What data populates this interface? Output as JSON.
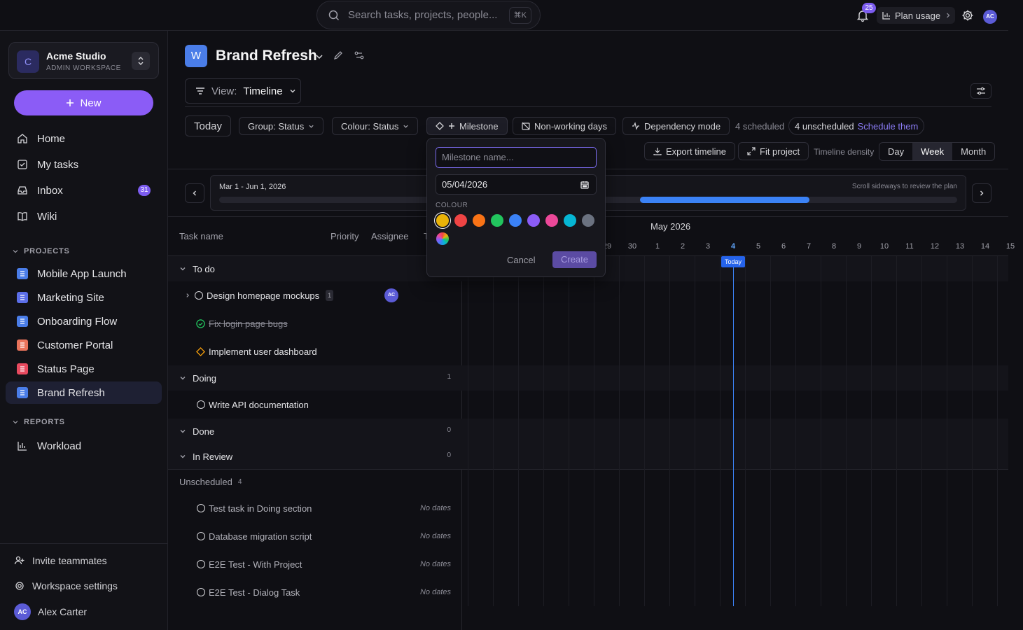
{
  "topbar": {
    "search_placeholder": "Search tasks, projects, people...",
    "search_shortcut": "⌘K",
    "notifications_count": "25",
    "plan_usage_label": "Plan usage",
    "user_initials": "AC"
  },
  "sidebar": {
    "workspace_initial": "C",
    "workspace_name": "Acme Studio",
    "workspace_role": "ADMIN WORKSPACE",
    "new_label": "New",
    "nav": [
      {
        "label": "Home"
      },
      {
        "label": "My tasks"
      },
      {
        "label": "Inbox",
        "badge": "31"
      },
      {
        "label": "Wiki"
      }
    ],
    "projects_heading": "PROJECTS",
    "projects": [
      {
        "label": "Mobile App Launch",
        "color": "#4a7de8"
      },
      {
        "label": "Marketing Site",
        "color": "#5b6ee8"
      },
      {
        "label": "Onboarding Flow",
        "color": "#4a7de8"
      },
      {
        "label": "Customer Portal",
        "color": "#e8735b"
      },
      {
        "label": "Status Page",
        "color": "#e84a5f"
      },
      {
        "label": "Brand Refresh",
        "color": "#4a7de8"
      }
    ],
    "reports_heading": "REPORTS",
    "reports": [
      {
        "label": "Workload"
      }
    ],
    "invite_label": "Invite teammates",
    "settings_label": "Workspace settings",
    "user_initials": "AC",
    "user_name": "Alex Carter"
  },
  "project": {
    "initial": "W",
    "title": "Brand Refresh",
    "view_prefix": "View:",
    "view_value": "Timeline"
  },
  "toolbar": {
    "today": "Today",
    "group": "Group: Status",
    "colour": "Colour: Status",
    "milestone": "Milestone",
    "nonworking": "Non-working days",
    "dependency": "Dependency mode",
    "scheduled": "4 scheduled",
    "unscheduled": "4 unscheduled",
    "schedule_link": "Schedule them",
    "export": "Export timeline",
    "fit": "Fit project",
    "density_label": "Timeline density",
    "density_options": [
      "Day",
      "Week",
      "Month"
    ],
    "density_selected": "Week"
  },
  "scroller": {
    "range": "Mar 1 - Jun 1, 2026",
    "hint": "Scroll sideways to review the plan",
    "viewport_start_fraction": 0.57,
    "viewport_width_fraction": 0.23
  },
  "table": {
    "headers": {
      "task": "Task name",
      "priority": "Priority",
      "assignee": "Assignee",
      "t": "T"
    },
    "groups": {
      "todo": "To do",
      "doing": "Doing",
      "doing_count": "1",
      "done": "Done",
      "done_count": "0",
      "review": "In Review",
      "review_count": "0"
    },
    "tasks": {
      "t1": "Design homepage mockups",
      "t1_subcount": "1",
      "t1_assignee": "AC",
      "t2": "Fix login page bugs",
      "t3": "Implement user dashboard",
      "t4": "Write API documentation"
    },
    "unscheduled_heading": "Unscheduled",
    "unscheduled_count": "4",
    "no_dates": "No dates",
    "unscheduled": [
      "Test task in Doing section",
      "Database migration script",
      "E2E Test - With Project",
      "E2E Test - Dialog Task"
    ]
  },
  "timeline": {
    "month": "May 2026",
    "days": [
      "29",
      "30",
      "1",
      "2",
      "3",
      "4",
      "5",
      "6",
      "7",
      "8",
      "9",
      "10",
      "11",
      "12",
      "13",
      "14",
      "15"
    ],
    "today_day": "4",
    "today_label": "Today"
  },
  "milestone_popover": {
    "name_placeholder": "Milestone name...",
    "date": "05/04/2026",
    "colour_label": "COLOUR",
    "colours": [
      "#eab308",
      "#ef4444",
      "#f97316",
      "#22c55e",
      "#3b82f6",
      "#8b5cf6",
      "#ec4899",
      "#06b6d4",
      "#6b7280"
    ],
    "selected_colour": "#eab308",
    "cancel": "Cancel",
    "create": "Create"
  }
}
